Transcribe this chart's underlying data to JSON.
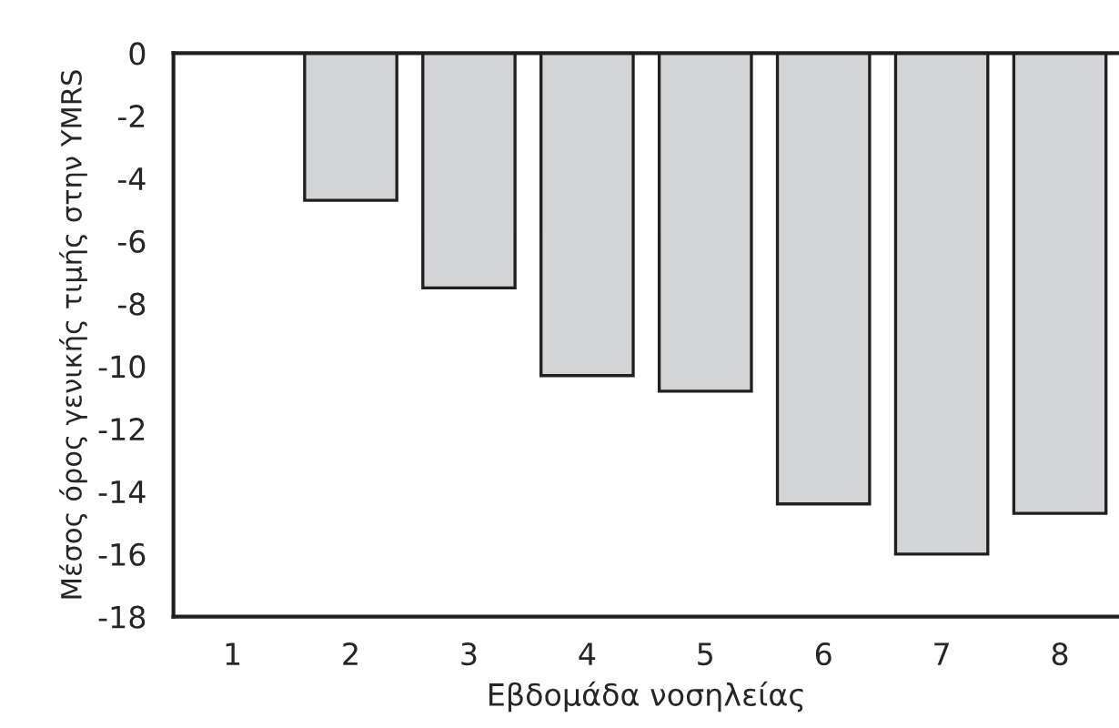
{
  "chart_data": {
    "type": "bar",
    "xlabel": "Εβδομάδα νοσηλείας",
    "ylabel": "Μέσος όρος γενικής τιμής στην YMRS",
    "categories": [
      "1",
      "2",
      "3",
      "4",
      "5",
      "6",
      "7",
      "8"
    ],
    "values": [
      null,
      -4.7,
      -7.5,
      -10.3,
      -10.8,
      -14.4,
      -16.0,
      -14.7
    ],
    "color": "#d3d4d6",
    "ylim": [
      -18,
      0
    ],
    "yticks": [
      0,
      -2,
      -4,
      -6,
      -8,
      -10,
      -12,
      -14,
      -16,
      -18
    ],
    "grid": false,
    "legend": false
  }
}
